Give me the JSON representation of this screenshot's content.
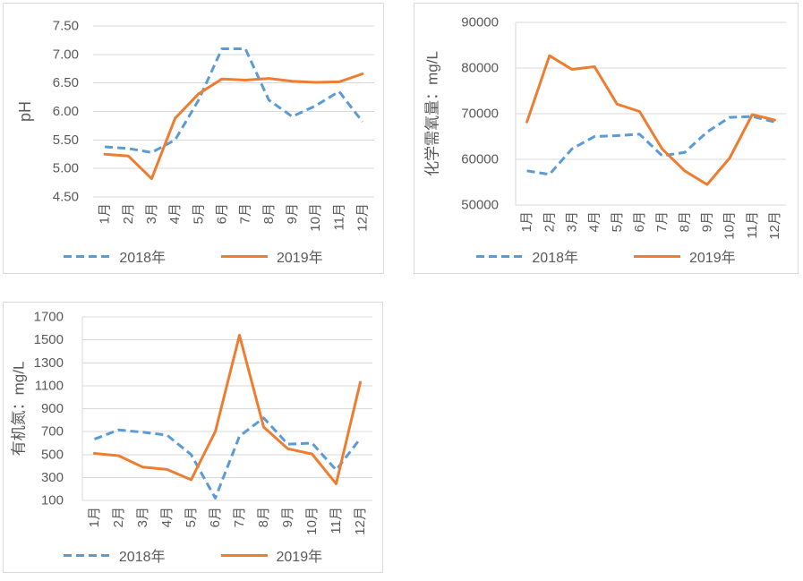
{
  "page": {
    "background": "#FFFFFF"
  },
  "colors": {
    "series_2018": "#5B9BD5",
    "series_2019": "#ED7D31",
    "grid": "#D9D9D9",
    "axis_line": "#D9D9D9",
    "text": "#595959",
    "chart_border": "#D9D9D9"
  },
  "legend": {
    "items": [
      {
        "label": "2018年",
        "style": "dashed",
        "color": "#5B9BD5"
      },
      {
        "label": "2019年",
        "style": "solid",
        "color": "#ED7D31"
      }
    ]
  },
  "chart_data": [
    {
      "id": "ph",
      "type": "line",
      "title": "",
      "ylabel": "pH",
      "xlabel": "",
      "categories": [
        "1月",
        "2月",
        "3月",
        "4月",
        "5月",
        "6月",
        "7月",
        "8月",
        "9月",
        "10月",
        "11月",
        "12月"
      ],
      "ylim": [
        4.5,
        7.5
      ],
      "ytick_step": 0.5,
      "ytick_labels": [
        "7.50",
        "7.00",
        "6.50",
        "6.00",
        "5.50",
        "5.00",
        "4.50"
      ],
      "grid": true,
      "y_axis_line": false,
      "legend_position": "bottom",
      "series": [
        {
          "name": "2018年",
          "color": "#5B9BD5",
          "dash": true,
          "values": [
            5.38,
            5.35,
            5.28,
            5.5,
            6.2,
            7.1,
            7.1,
            6.2,
            5.91,
            6.1,
            6.35,
            5.82
          ]
        },
        {
          "name": "2019年",
          "color": "#ED7D31",
          "dash": false,
          "values": [
            5.25,
            5.22,
            4.82,
            5.88,
            6.31,
            6.57,
            6.55,
            6.58,
            6.53,
            6.51,
            6.52,
            6.66
          ]
        }
      ]
    },
    {
      "id": "cod",
      "type": "line",
      "title": "",
      "ylabel": "化学需氧量：mg/L",
      "xlabel": "",
      "categories": [
        "1月",
        "2月",
        "3月",
        "4月",
        "5月",
        "6月",
        "7月",
        "8月",
        "9月",
        "10月",
        "11月",
        "12月"
      ],
      "ylim": [
        50000,
        90000
      ],
      "ytick_step": 10000,
      "ytick_labels": [
        "90000",
        "80000",
        "70000",
        "60000",
        "50000"
      ],
      "grid": true,
      "y_axis_line": true,
      "legend_position": "bottom",
      "series": [
        {
          "name": "2018年",
          "color": "#5B9BD5",
          "dash": true,
          "values": [
            57500,
            56700,
            62300,
            65000,
            65200,
            65500,
            60800,
            61500,
            66000,
            69200,
            69400,
            68200
          ]
        },
        {
          "name": "2019年",
          "color": "#ED7D31",
          "dash": false,
          "values": [
            68200,
            82700,
            79700,
            80300,
            72100,
            70500,
            62300,
            57500,
            54500,
            60300,
            69800,
            68600
          ]
        }
      ]
    },
    {
      "id": "organic-nitrogen",
      "type": "line",
      "title": "",
      "ylabel": "有机氮：mg/L",
      "xlabel": "",
      "categories": [
        "1月",
        "2月",
        "3月",
        "4月",
        "5月",
        "6月",
        "7月",
        "8月",
        "9月",
        "10月",
        "11月",
        "12月"
      ],
      "ylim": [
        100,
        1700
      ],
      "ytick_step": 200,
      "ytick_labels": [
        "1700",
        "1500",
        "1300",
        "1100",
        "900",
        "700",
        "500",
        "300",
        "100"
      ],
      "grid": true,
      "y_axis_line": true,
      "legend_position": "bottom",
      "series": [
        {
          "name": "2018年",
          "color": "#5B9BD5",
          "dash": true,
          "values": [
            635,
            715,
            695,
            670,
            500,
            120,
            660,
            820,
            590,
            600,
            365,
            640
          ]
        },
        {
          "name": "2019年",
          "color": "#ED7D31",
          "dash": false,
          "values": [
            510,
            490,
            390,
            370,
            280,
            700,
            1540,
            740,
            550,
            505,
            245,
            1130
          ]
        }
      ]
    }
  ]
}
